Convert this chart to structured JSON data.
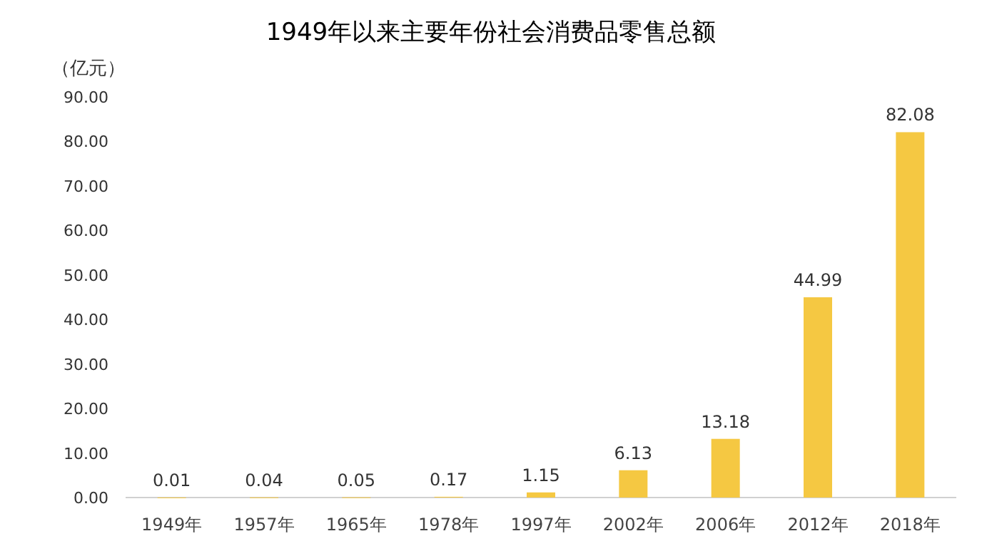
{
  "chart_data": {
    "type": "bar",
    "title": "1949年以来主要年份社会消费品零售总额",
    "ylabel": "（亿元）",
    "categories": [
      "1949年",
      "1957年",
      "1965年",
      "1978年",
      "1997年",
      "2002年",
      "2006年",
      "2012年",
      "2018年"
    ],
    "values": [
      0.01,
      0.04,
      0.05,
      0.17,
      1.15,
      6.13,
      13.18,
      44.99,
      82.08
    ],
    "value_labels": [
      "0.01",
      "0.04",
      "0.05",
      "0.17",
      "1.15",
      "6.13",
      "13.18",
      "44.99",
      "82.08"
    ],
    "color": "#f5c842",
    "ylim": [
      0,
      90
    ],
    "yticks": [
      {
        "value": 0,
        "label": "0.00"
      },
      {
        "value": 10,
        "label": "10.00"
      },
      {
        "value": 20,
        "label": "20.00"
      },
      {
        "value": 30,
        "label": "30.00"
      },
      {
        "value": 40,
        "label": "40.00"
      },
      {
        "value": 50,
        "label": "50.00"
      },
      {
        "value": 60,
        "label": "60.00"
      },
      {
        "value": 70,
        "label": "70.00"
      },
      {
        "value": 80,
        "label": "80.00"
      },
      {
        "value": 90,
        "label": "90.00"
      }
    ],
    "grid": false
  }
}
